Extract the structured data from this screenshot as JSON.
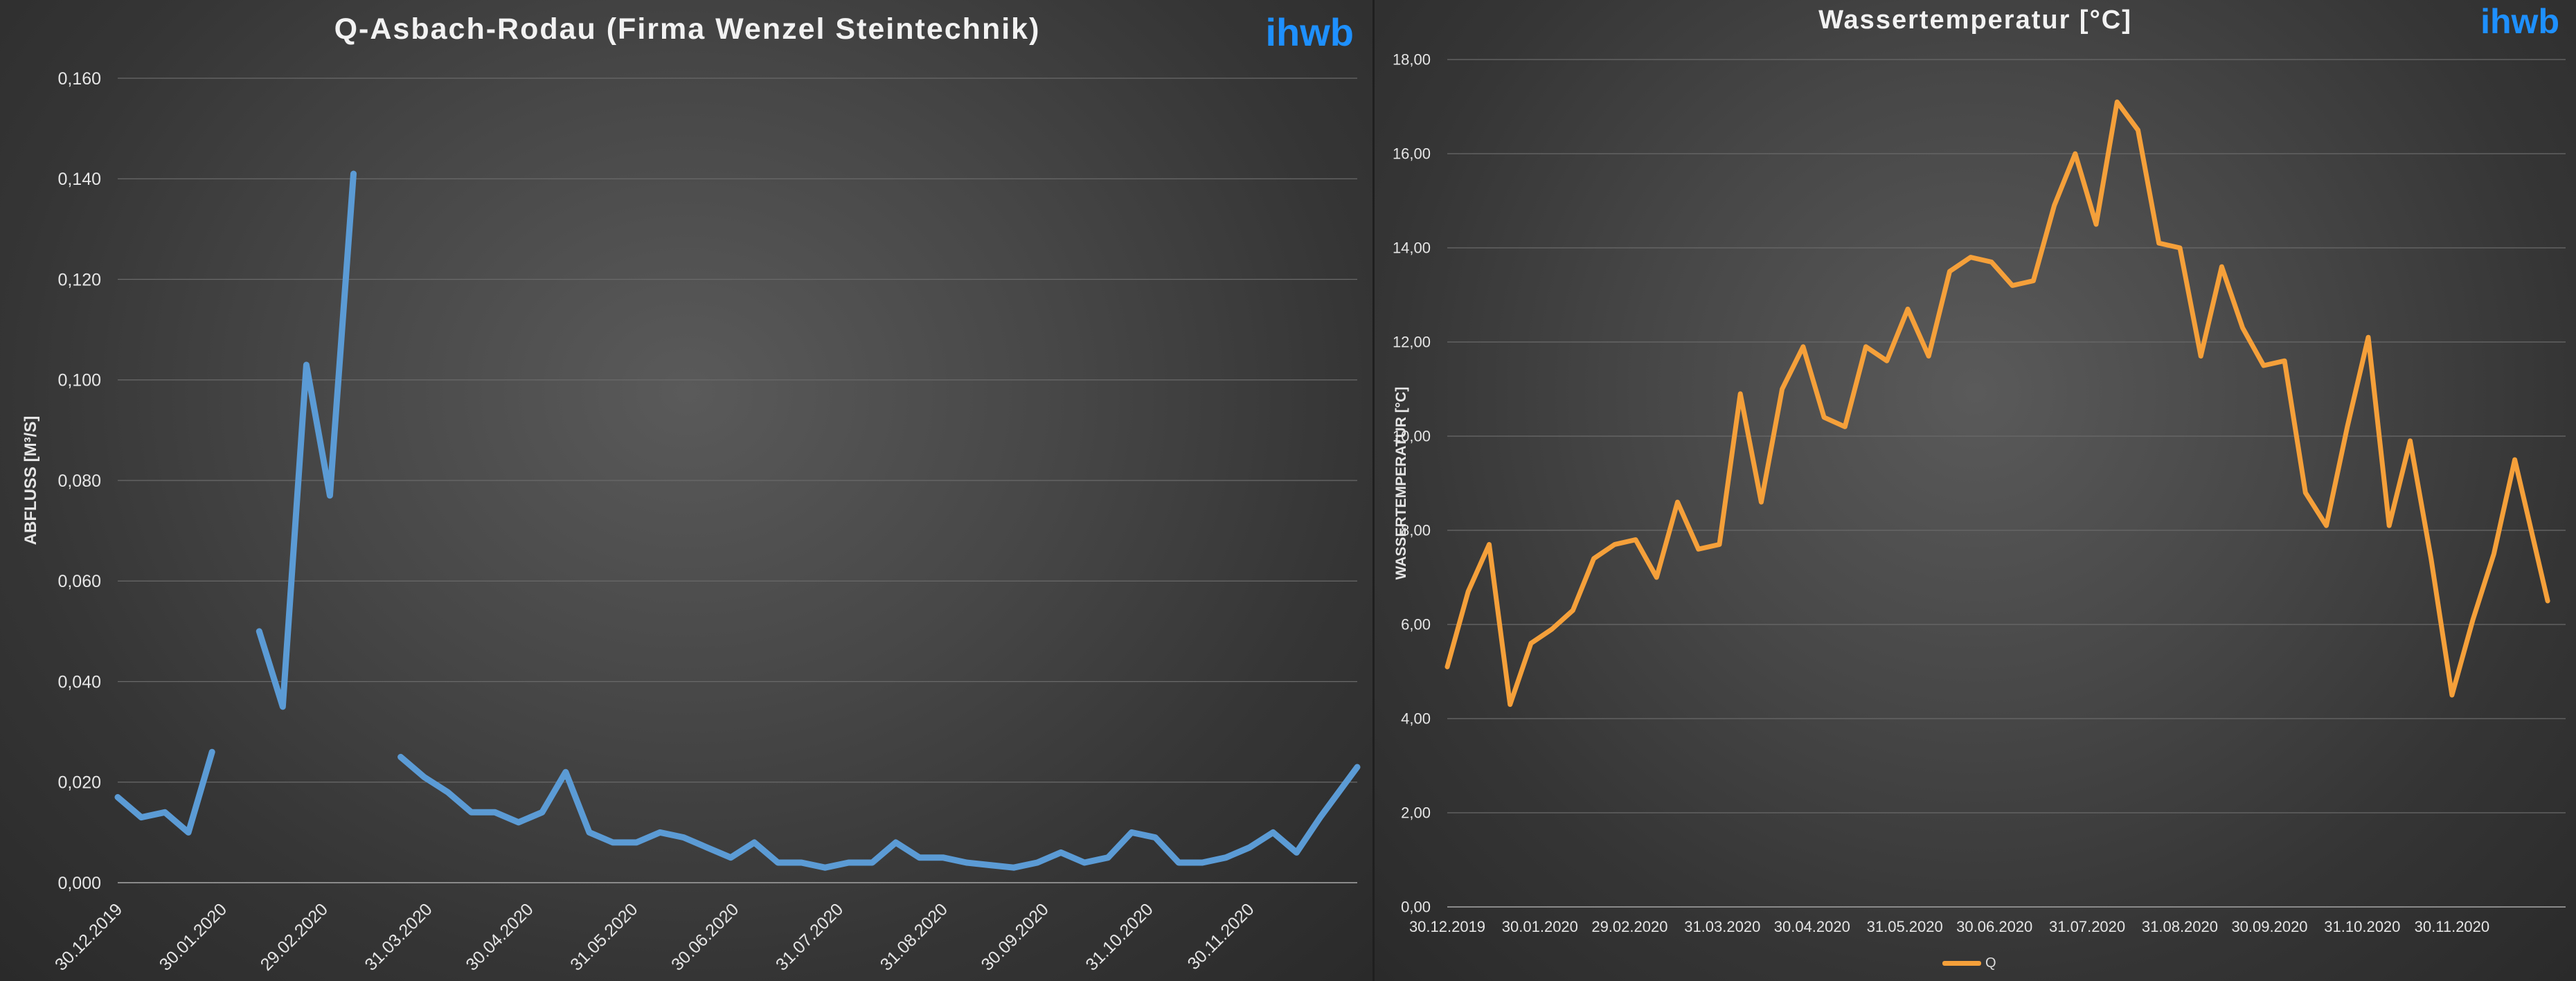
{
  "charts": [
    {
      "title": "Q-Asbach-Rodau (Firma Wenzel Steintechnik)",
      "brand": "ihwb",
      "ylabel": "ABFLUSS [M³/S]",
      "yticks": [
        "0,000",
        "0,020",
        "0,040",
        "0,060",
        "0,080",
        "0,100",
        "0,120",
        "0,140",
        "0,160"
      ],
      "xticks": [
        "30.12.2019",
        "30.01.2020",
        "29.02.2020",
        "31.03.2020",
        "30.04.2020",
        "31.05.2020",
        "30.06.2020",
        "31.07.2020",
        "31.08.2020",
        "30.09.2020",
        "31.10.2020",
        "30.11.2020"
      ]
    },
    {
      "title": "Wassertemperatur [°C]",
      "brand": "ihwb",
      "ylabel": "WASSERTEMPERATUR [°C]",
      "yticks": [
        "0,00",
        "2,00",
        "4,00",
        "6,00",
        "8,00",
        "10,00",
        "12,00",
        "14,00",
        "16,00",
        "18,00"
      ],
      "xticks": [
        "30.12.2019",
        "30.01.2020",
        "29.02.2020",
        "31.03.2020",
        "30.04.2020",
        "31.05.2020",
        "30.06.2020",
        "31.07.2020",
        "31.08.2020",
        "30.09.2020",
        "31.10.2020",
        "30.11.2020"
      ],
      "legend": "Q"
    }
  ],
  "colors": {
    "discharge": "#5b9bd5",
    "temperature": "#f5a03a",
    "grid": "#6a6a6a",
    "text": "#e6e6e6"
  },
  "chart_data": [
    {
      "type": "line",
      "title": "Q-Asbach-Rodau (Firma Wenzel Steintechnik)",
      "ylabel": "ABFLUSS [M³/S]",
      "ylim": [
        0,
        0.16
      ],
      "x_start": "2019-12-30",
      "x_end": "2021-01-01",
      "grid": true,
      "series": [
        {
          "points": [
            [
              "2019-12-30",
              0.017
            ],
            [
              "2020-01-06",
              0.013
            ],
            [
              "2020-01-13",
              0.014
            ],
            [
              "2020-01-20",
              0.01
            ],
            [
              "2020-01-27",
              0.026
            ],
            null,
            [
              "2020-02-10",
              0.05
            ],
            [
              "2020-02-17",
              0.035
            ],
            [
              "2020-02-24",
              0.103
            ],
            [
              "2020-03-02",
              0.077
            ],
            [
              "2020-03-09",
              0.141
            ],
            null,
            [
              "2020-03-23",
              0.025
            ],
            [
              "2020-03-30",
              0.021
            ],
            [
              "2020-04-06",
              0.018
            ],
            [
              "2020-04-13",
              0.014
            ],
            [
              "2020-04-20",
              0.014
            ],
            [
              "2020-04-27",
              0.012
            ],
            [
              "2020-05-04",
              0.014
            ],
            [
              "2020-05-11",
              0.022
            ],
            [
              "2020-05-18",
              0.01
            ],
            [
              "2020-05-25",
              0.008
            ],
            [
              "2020-06-01",
              0.008
            ],
            [
              "2020-06-08",
              0.01
            ],
            [
              "2020-06-15",
              0.009
            ],
            [
              "2020-06-22",
              0.007
            ],
            [
              "2020-06-29",
              0.005
            ],
            [
              "2020-07-06",
              0.008
            ],
            [
              "2020-07-13",
              0.004
            ],
            [
              "2020-07-20",
              0.004
            ],
            [
              "2020-07-27",
              0.003
            ],
            [
              "2020-08-03",
              0.004
            ],
            [
              "2020-08-10",
              0.004
            ],
            [
              "2020-08-17",
              0.008
            ],
            [
              "2020-08-24",
              0.005
            ],
            [
              "2020-08-31",
              0.005
            ],
            [
              "2020-09-07",
              0.004
            ],
            [
              "2020-09-14",
              0.0035
            ],
            [
              "2020-09-21",
              0.003
            ],
            [
              "2020-09-28",
              0.004
            ],
            [
              "2020-10-05",
              0.006
            ],
            [
              "2020-10-12",
              0.004
            ],
            [
              "2020-10-19",
              0.005
            ],
            [
              "2020-10-26",
              0.01
            ],
            [
              "2020-11-02",
              0.009
            ],
            [
              "2020-11-09",
              0.004
            ],
            [
              "2020-11-16",
              0.004
            ],
            [
              "2020-11-23",
              0.005
            ],
            [
              "2020-11-30",
              0.007
            ],
            [
              "2020-12-07",
              0.01
            ],
            [
              "2020-12-14",
              0.006
            ],
            [
              "2020-12-21",
              0.013
            ],
            [
              "2021-01-01",
              0.023
            ]
          ]
        }
      ]
    },
    {
      "type": "line",
      "title": "Wassertemperatur [°C]",
      "ylabel": "WASSERTEMPERATUR [°C]",
      "ylim": [
        0,
        18
      ],
      "x_start": "2019-12-30",
      "x_end": "2021-01-07",
      "grid": true,
      "legend": "bottom",
      "series": [
        {
          "name": "Q",
          "points": [
            [
              "2019-12-30",
              5.1
            ],
            [
              "2020-01-06",
              6.7
            ],
            [
              "2020-01-13",
              7.7
            ],
            [
              "2020-01-20",
              4.3
            ],
            [
              "2020-01-27",
              5.6
            ],
            [
              "2020-02-03",
              5.9
            ],
            [
              "2020-02-10",
              6.3
            ],
            [
              "2020-02-17",
              7.4
            ],
            [
              "2020-02-24",
              7.7
            ],
            [
              "2020-03-02",
              7.8
            ],
            [
              "2020-03-09",
              7.0
            ],
            [
              "2020-03-16",
              8.6
            ],
            [
              "2020-03-23",
              7.6
            ],
            [
              "2020-03-30",
              7.7
            ],
            [
              "2020-04-06",
              10.9
            ],
            [
              "2020-04-13",
              8.6
            ],
            [
              "2020-04-20",
              11.0
            ],
            [
              "2020-04-27",
              11.9
            ],
            [
              "2020-05-04",
              10.4
            ],
            [
              "2020-05-11",
              10.2
            ],
            [
              "2020-05-18",
              11.9
            ],
            [
              "2020-05-25",
              11.6
            ],
            [
              "2020-06-01",
              12.7
            ],
            [
              "2020-06-08",
              11.7
            ],
            [
              "2020-06-15",
              13.5
            ],
            [
              "2020-06-22",
              13.8
            ],
            [
              "2020-06-29",
              13.7
            ],
            [
              "2020-07-06",
              13.2
            ],
            [
              "2020-07-13",
              13.3
            ],
            [
              "2020-07-20",
              14.9
            ],
            [
              "2020-07-27",
              16.0
            ],
            [
              "2020-08-03",
              14.5
            ],
            [
              "2020-08-10",
              17.1
            ],
            [
              "2020-08-17",
              16.5
            ],
            [
              "2020-08-24",
              14.1
            ],
            [
              "2020-08-31",
              14.0
            ],
            [
              "2020-09-07",
              11.7
            ],
            [
              "2020-09-14",
              13.6
            ],
            [
              "2020-09-21",
              12.3
            ],
            [
              "2020-09-28",
              11.5
            ],
            [
              "2020-10-05",
              11.6
            ],
            [
              "2020-10-12",
              8.8
            ],
            [
              "2020-10-19",
              8.1
            ],
            [
              "2020-10-26",
              10.2
            ],
            [
              "2020-11-02",
              12.1
            ],
            [
              "2020-11-09",
              8.1
            ],
            [
              "2020-11-16",
              9.9
            ],
            [
              "2020-11-23",
              7.4
            ],
            [
              "2020-11-30",
              4.5
            ],
            [
              "2020-12-07",
              6.1
            ],
            [
              "2020-12-14",
              7.5
            ],
            [
              "2020-12-21",
              9.5
            ],
            [
              "2021-01-01",
              6.5
            ]
          ]
        }
      ]
    }
  ]
}
